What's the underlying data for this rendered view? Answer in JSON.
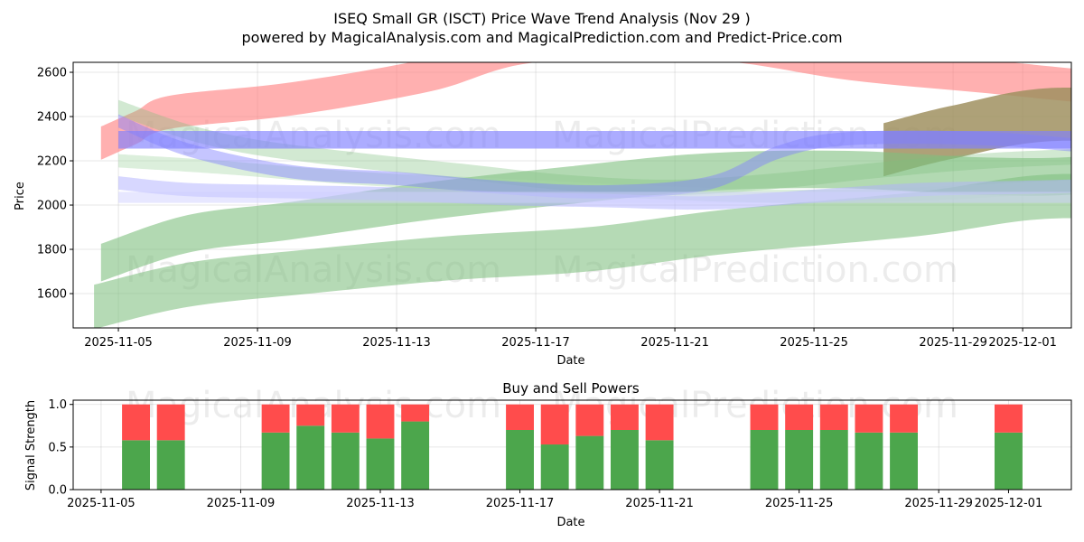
{
  "chart_data": [
    {
      "type": "area",
      "title_line1": "ISEQ Small GR (ISCT) Price Wave Trend Analysis (Nov 29 )",
      "title_line2": "powered by MagicalAnalysis.com and MagicalPrediction.com and Predict-Price.com",
      "xlabel": "Date",
      "ylabel": "Price",
      "ylim": [
        1445,
        2645
      ],
      "xlim": [
        "2025-11-04",
        "2025-12-02"
      ],
      "grid": true,
      "yticks": [
        1600,
        1800,
        2000,
        2200,
        2400,
        2600
      ],
      "xticks": [
        "2025-11-05",
        "2025-11-09",
        "2025-11-13",
        "2025-11-17",
        "2025-11-21",
        "2025-11-25",
        "2025-11-29",
        "2025-12-01"
      ],
      "watermarks": [
        "MagicalAnalysis.com",
        "MagicalPrediction.com"
      ],
      "bands": [
        {
          "name": "red-upper-band",
          "color": "#ff7f7f",
          "opacity": 0.62,
          "points": [
            [
              0.5,
              2280
            ],
            [
              1.5,
              2350
            ],
            [
              2.5,
              2420
            ],
            [
              6,
              2480
            ],
            [
              10,
              2590
            ],
            [
              13,
              2720
            ],
            [
              18,
              2730
            ],
            [
              22,
              2640
            ],
            [
              26,
              2580
            ],
            [
              30,
              2520
            ],
            [
              32.8,
              2500
            ]
          ],
          "width": 150
        },
        {
          "name": "olive-rising-band",
          "color": "#a09060",
          "opacity": 0.85,
          "points": [
            [
              23,
              2250
            ],
            [
              25,
              2330
            ],
            [
              28,
              2410
            ],
            [
              32.8,
              2370
            ]
          ],
          "width": 240
        },
        {
          "name": "green-lower-band",
          "color": "#7fbf7f",
          "opacity": 0.58,
          "points": [
            [
              0.3,
              1540
            ],
            [
              3,
              1640
            ],
            [
              6.5,
              1700
            ],
            [
              10.5,
              1760
            ],
            [
              14.5,
              1800
            ],
            [
              18.5,
              1880
            ],
            [
              24,
              1960
            ],
            [
              28,
              2040
            ],
            [
              32.8,
              2000
            ]
          ],
          "width": 200
        },
        {
          "name": "green-mid-band",
          "color": "#7fbf7f",
          "opacity": 0.6,
          "points": [
            [
              0.5,
              1740
            ],
            [
              3,
              1870
            ],
            [
              6,
              1930
            ],
            [
              10,
              2020
            ],
            [
              14,
              2090
            ],
            [
              18,
              2150
            ],
            [
              22,
              2160
            ],
            [
              26,
              2130
            ],
            [
              29,
              2140
            ],
            [
              32.8,
              2230
            ]
          ],
          "width": 170
        },
        {
          "name": "green-wave-band",
          "color": "#7fbf7f",
          "opacity": 0.35,
          "points": [
            [
              1,
              2440
            ],
            [
              3,
              2330
            ],
            [
              5,
              2260
            ],
            [
              8,
              2200
            ],
            [
              11,
              2150
            ],
            [
              14,
              2100
            ],
            [
              17,
              2080
            ],
            [
              20,
              2110
            ],
            [
              23,
              2160
            ],
            [
              26,
              2200
            ],
            [
              30,
              2230
            ],
            [
              32.8,
              2270
            ]
          ],
          "width": 70
        },
        {
          "name": "light-green-band",
          "color": "#a8d8a8",
          "opacity": 0.4,
          "points": [
            [
              1,
              2200
            ],
            [
              4,
              2170
            ],
            [
              8,
              2120
            ],
            [
              12,
              2090
            ],
            [
              16,
              2060
            ],
            [
              20,
              2040
            ],
            [
              24,
              2050
            ],
            [
              28,
              2080
            ],
            [
              32.8,
              2100
            ]
          ],
          "width": 60
        },
        {
          "name": "blue-wave-band",
          "color": "#7f7fff",
          "opacity": 0.45,
          "points": [
            [
              1,
              2380
            ],
            [
              3,
              2250
            ],
            [
              6,
              2150
            ],
            [
              9,
              2120
            ],
            [
              12,
              2080
            ],
            [
              15,
              2060
            ],
            [
              18,
              2100
            ],
            [
              20,
              2240
            ],
            [
              22,
              2300
            ],
            [
              26,
              2300
            ],
            [
              30,
              2250
            ],
            [
              32,
              2230
            ]
          ],
          "width": 60
        },
        {
          "name": "light-blue-band",
          "color": "#b0b0ff",
          "opacity": 0.5,
          "points": [
            [
              1,
              2100
            ],
            [
              3,
              2070
            ],
            [
              6,
              2060
            ],
            [
              9,
              2050
            ],
            [
              12,
              2030
            ],
            [
              15,
              2020
            ],
            [
              18,
              2010
            ],
            [
              21,
              2040
            ],
            [
              24,
              2070
            ],
            [
              27,
              2080
            ],
            [
              30,
              2090
            ],
            [
              32,
              2080
            ]
          ],
          "width": 60
        },
        {
          "name": "blue-rect-band",
          "color": "#7f7fff",
          "opacity": 0.65,
          "points": [
            [
              1,
              2295
            ],
            [
              32,
              2295
            ]
          ],
          "width": 80
        },
        {
          "name": "pale-blue-rect-band",
          "color": "#cfcfff",
          "opacity": 0.5,
          "points": [
            [
              1,
              2035
            ],
            [
              32,
              2035
            ]
          ],
          "width": 50
        }
      ]
    },
    {
      "type": "bar",
      "title": "Buy and Sell Powers",
      "xlabel": "Date",
      "ylabel": "Signal Strength",
      "ylim": [
        0,
        1.05
      ],
      "yticks": [
        "0.0",
        "0.5",
        "1.0"
      ],
      "xticks": [
        "2025-11-05",
        "2025-11-09",
        "2025-11-13",
        "2025-11-17",
        "2025-11-21",
        "2025-11-25",
        "2025-11-29",
        "2025-12-01"
      ],
      "categories": [
        "2025-11-06",
        "2025-11-07",
        "2025-11-10",
        "2025-11-11",
        "2025-11-12",
        "2025-11-13",
        "2025-11-14",
        "2025-11-17",
        "2025-11-18",
        "2025-11-19",
        "2025-11-20",
        "2025-11-21",
        "2025-11-24",
        "2025-11-25",
        "2025-11-26",
        "2025-11-27",
        "2025-11-28",
        "2025-12-01"
      ],
      "series": [
        {
          "name": "Buy",
          "color": "#4ca64c",
          "values": [
            0.58,
            0.58,
            0.67,
            0.75,
            0.67,
            0.6,
            0.8,
            0.7,
            0.53,
            0.63,
            0.7,
            0.58,
            0.7,
            0.7,
            0.7,
            0.67,
            0.67,
            0.67
          ]
        },
        {
          "name": "Sell",
          "color": "#ff4c4c",
          "values": [
            0.42,
            0.42,
            0.33,
            0.25,
            0.33,
            0.4,
            0.2,
            0.3,
            0.47,
            0.37,
            0.3,
            0.42,
            0.3,
            0.3,
            0.3,
            0.33,
            0.33,
            0.33
          ]
        }
      ],
      "watermarks": [
        "MagicalAnalysis.com",
        "MagicalPrediction.com"
      ]
    }
  ]
}
